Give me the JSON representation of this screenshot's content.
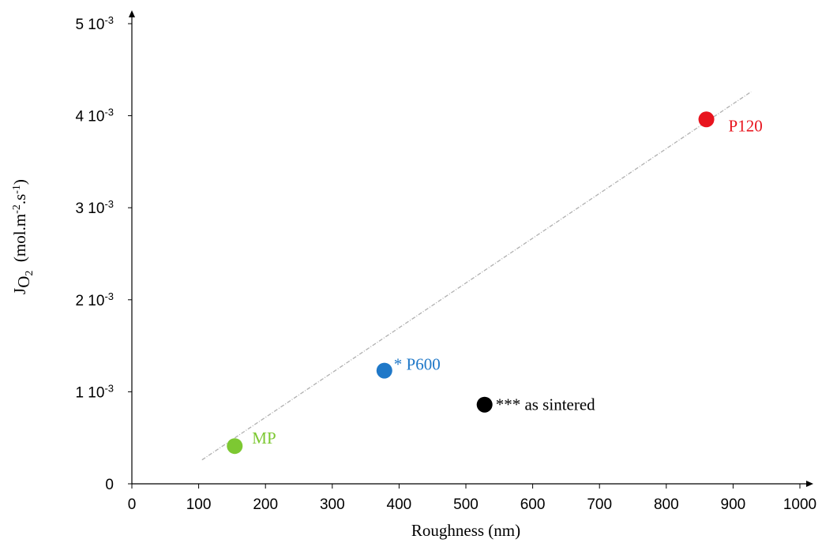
{
  "chart_data": {
    "type": "scatter",
    "xlabel": "Roughness (nm)",
    "ylabel": [
      {
        "text": "J",
        "pos": "base"
      },
      {
        "text": "O",
        "pos": "sub"
      },
      {
        "text": "2",
        "pos": "subsub"
      },
      {
        "text": "  (mol.m",
        "pos": "base"
      },
      {
        "text": "-2",
        "pos": "super"
      },
      {
        "text": ".s",
        "pos": "base"
      },
      {
        "text": "-1",
        "pos": "super"
      },
      {
        "text": ")",
        "pos": "base"
      }
    ],
    "xlim": [
      0,
      1000
    ],
    "xticks": [
      0,
      100,
      200,
      300,
      400,
      500,
      600,
      700,
      800,
      900,
      1000
    ],
    "ylim": [
      0,
      0.005
    ],
    "yticks": [
      {
        "value": 0,
        "label": "0"
      },
      {
        "value": 0.001,
        "label": "1 10-3"
      },
      {
        "value": 0.002,
        "label": "2 10-3"
      },
      {
        "value": 0.003,
        "label": "3 10-3"
      },
      {
        "value": 0.004,
        "label": "4 10-3"
      },
      {
        "value": 0.005,
        "label": "5 10-3"
      }
    ],
    "series": [
      {
        "name": "MP",
        "color": "#7dc832",
        "x": [
          154
        ],
        "y": [
          0.00041
        ]
      },
      {
        "name": "* P600",
        "color": "#1f78c8",
        "x": [
          378
        ],
        "y": [
          0.00123
        ]
      },
      {
        "name": "*** as sintered",
        "color": "#000000",
        "x": [
          528
        ],
        "y": [
          0.00086
        ]
      },
      {
        "name": "P120",
        "color": "#e8141e",
        "x": [
          860
        ],
        "y": [
          0.00396
        ]
      }
    ],
    "trendline": {
      "color": "#b0b0b0",
      "x": [
        105,
        927
      ],
      "y": [
        0.00026,
        0.00426
      ]
    }
  }
}
